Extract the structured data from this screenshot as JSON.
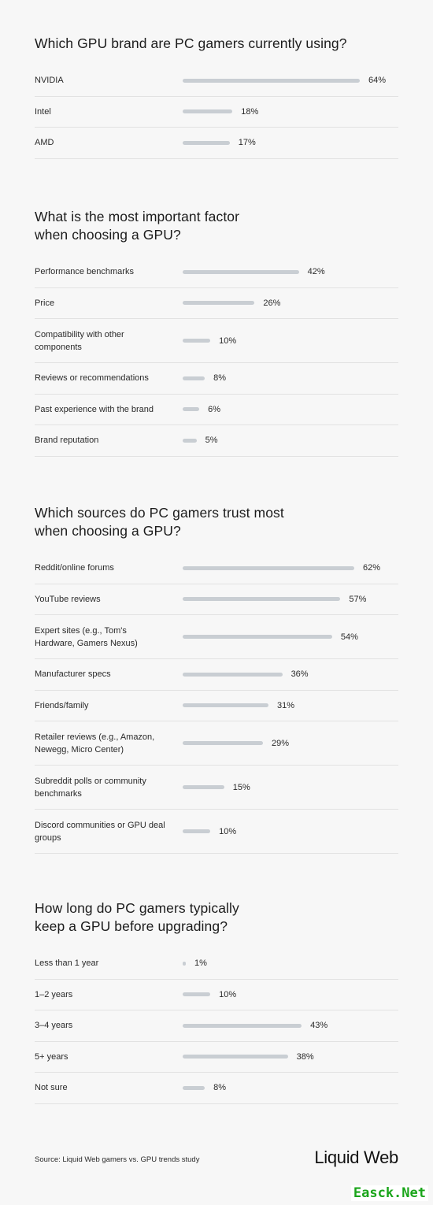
{
  "chart_data": [
    {
      "type": "bar",
      "title": "Which GPU brand are PC gamers currently using?",
      "categories": [
        "NVIDIA",
        "Intel",
        "AMD"
      ],
      "values": [
        64,
        18,
        17
      ],
      "value_labels": [
        "64%",
        "18%",
        "17%"
      ],
      "unit": "%",
      "max": 64
    },
    {
      "type": "bar",
      "title": "What is the most important factor when choosing a GPU?",
      "categories": [
        "Performance benchmarks",
        "Price",
        "Compatibility with other components",
        "Reviews or recommendations",
        "Past experience with the brand",
        "Brand reputation"
      ],
      "values": [
        42,
        26,
        10,
        8,
        6,
        5
      ],
      "value_labels": [
        "42%",
        "26%",
        "10%",
        "8%",
        "6%",
        "5%"
      ],
      "unit": "%",
      "max": 64
    },
    {
      "type": "bar",
      "title": "Which sources do PC gamers trust most when choosing a GPU?",
      "categories": [
        "Reddit/online forums",
        "YouTube reviews",
        "Expert sites (e.g., Tom's Hardware, Gamers Nexus)",
        "Manufacturer specs",
        "Friends/family",
        "Retailer reviews (e.g., Amazon, Newegg, Micro Center)",
        "Subreddit polls or community benchmarks",
        "Discord communities or GPU deal groups"
      ],
      "values": [
        62,
        57,
        54,
        36,
        31,
        29,
        15,
        10
      ],
      "value_labels": [
        "62%",
        "57%",
        "54%",
        "36%",
        "31%",
        "29%",
        "15%",
        "10%"
      ],
      "unit": "%",
      "max": 64
    },
    {
      "type": "bar",
      "title": "How long do PC gamers typically keep a GPU before upgrading?",
      "categories": [
        "Less than 1 year",
        "1–2 years",
        "3–4 years",
        "5+ years",
        "Not sure"
      ],
      "values": [
        1,
        10,
        43,
        38,
        8
      ],
      "value_labels": [
        "1%",
        "10%",
        "43%",
        "38%",
        "8%"
      ],
      "unit": "%",
      "max": 64
    }
  ],
  "colors": {
    "background": "#f7f7f7",
    "bar": "#c9ced3",
    "divider": "#e2e2e2",
    "text": "#1e1e1e",
    "watermark": "#1aa51a"
  },
  "footer": {
    "source": "Source: Liquid Web gamers vs. GPU trends study",
    "logo": "Liquid Web"
  },
  "watermark": "Easck.Net"
}
